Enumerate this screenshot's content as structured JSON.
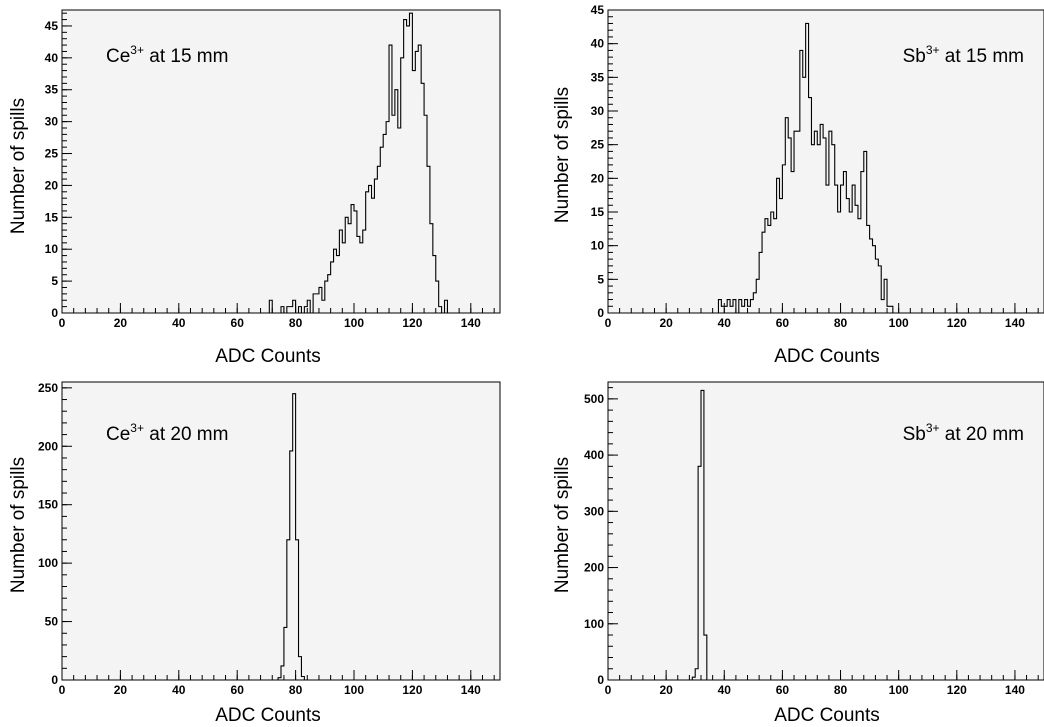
{
  "chart_data": [
    {
      "type": "histogram",
      "annotation": {
        "base": "Ce",
        "sup": "3+",
        "rest": " at 15 mm"
      },
      "xlabel": "ADC Counts",
      "ylabel": "Number of spills",
      "xlim": [
        0,
        150
      ],
      "ylim": [
        0,
        47.5
      ],
      "xticks": [
        0,
        20,
        40,
        60,
        80,
        100,
        120,
        140
      ],
      "yticks": [
        0,
        5,
        10,
        15,
        20,
        25,
        30,
        35,
        40,
        45
      ],
      "bin_width": 1,
      "bin_start": 70,
      "counts": [
        0,
        2,
        0,
        0,
        0,
        1,
        0,
        1,
        1,
        2,
        0,
        1,
        0,
        1,
        2,
        0,
        3,
        3,
        4,
        2,
        5,
        6,
        8,
        10,
        9,
        13,
        11,
        15,
        14,
        17,
        16,
        12,
        11,
        13,
        19,
        20,
        18,
        21,
        23,
        26,
        28,
        30,
        42,
        31,
        35,
        29,
        40,
        46,
        45,
        47,
        38,
        41,
        42,
        36,
        31,
        23,
        14,
        9,
        5,
        1,
        0,
        2,
        0
      ]
    },
    {
      "type": "histogram",
      "annotation": {
        "base": "Sb",
        "sup": "3+",
        "rest": " at 15 mm"
      },
      "xlabel": "ADC Counts",
      "ylabel": "Number of spills",
      "xlim": [
        0,
        150
      ],
      "ylim": [
        0,
        45
      ],
      "xticks": [
        0,
        20,
        40,
        60,
        80,
        100,
        120,
        140
      ],
      "yticks": [
        0,
        5,
        10,
        15,
        20,
        25,
        30,
        35,
        40,
        45
      ],
      "bin_width": 1,
      "bin_start": 37,
      "counts": [
        0,
        2,
        1,
        1,
        2,
        1,
        2,
        0,
        2,
        1,
        2,
        1,
        2,
        3,
        5,
        9,
        12,
        14,
        13,
        15,
        14,
        20,
        17,
        22,
        29,
        26,
        21,
        27,
        27,
        39,
        35,
        43,
        32,
        25,
        27,
        25,
        28,
        26,
        19,
        27,
        25,
        19,
        15,
        19,
        21,
        17,
        15,
        19,
        16,
        14,
        21,
        24,
        13,
        11,
        10,
        8,
        7,
        2,
        5,
        1,
        1,
        0
      ]
    },
    {
      "type": "histogram",
      "annotation": {
        "base": "Ce",
        "sup": "3+",
        "rest": " at 20 mm"
      },
      "xlabel": "ADC Counts",
      "ylabel": "Number of spills",
      "xlim": [
        0,
        150
      ],
      "ylim": [
        0,
        255
      ],
      "xticks": [
        0,
        20,
        40,
        60,
        80,
        100,
        120,
        140
      ],
      "yticks": [
        0,
        50,
        100,
        150,
        200,
        250
      ],
      "bin_width": 1,
      "bin_start": 74,
      "counts": [
        2,
        12,
        45,
        120,
        196,
        245,
        120,
        20,
        3,
        0
      ]
    },
    {
      "type": "histogram",
      "annotation": {
        "base": "Sb",
        "sup": "3+",
        "rest": " at 20 mm"
      },
      "xlabel": "ADC Counts",
      "ylabel": "Number of spills",
      "xlim": [
        0,
        150
      ],
      "ylim": [
        0,
        530
      ],
      "xticks": [
        0,
        20,
        40,
        60,
        80,
        100,
        120,
        140
      ],
      "yticks": [
        0,
        100,
        200,
        300,
        400,
        500
      ],
      "bin_width": 1,
      "bin_start": 29,
      "counts": [
        5,
        20,
        380,
        515,
        80,
        0
      ]
    }
  ]
}
